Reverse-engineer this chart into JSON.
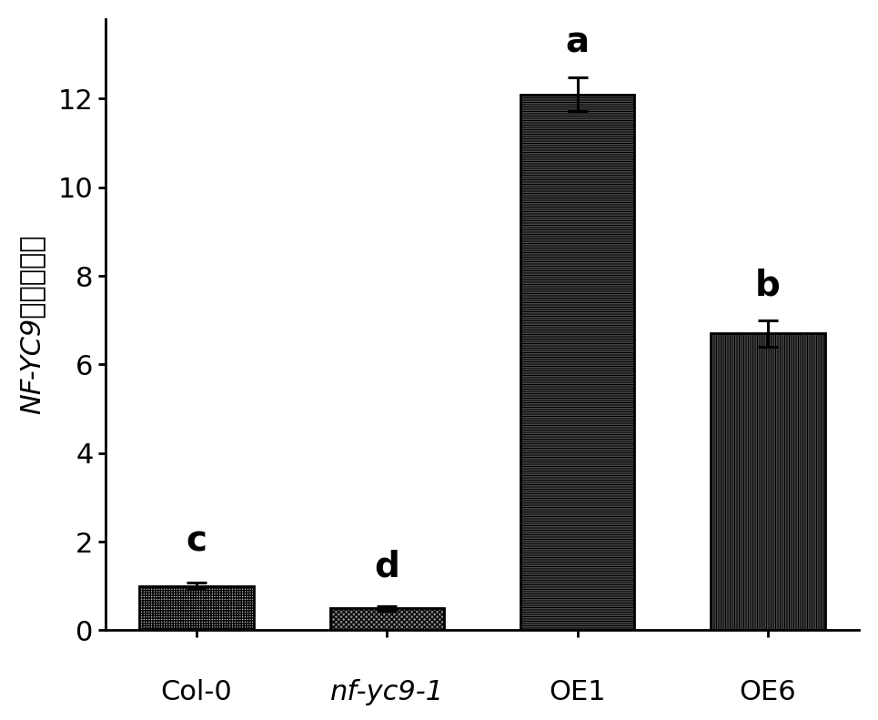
{
  "categories": [
    "Col-0",
    "nf-yc9-1",
    "OE1",
    "OE6"
  ],
  "values": [
    1.0,
    0.5,
    12.1,
    6.7
  ],
  "errors": [
    0.07,
    0.05,
    0.38,
    0.3
  ],
  "anno_labels": [
    "c",
    "d",
    "a",
    "b"
  ],
  "ylabel": "NF-YC9相对表达量",
  "ylim": [
    0,
    13.8
  ],
  "yticks": [
    0,
    2,
    4,
    6,
    8,
    10,
    12
  ],
  "bar_width": 0.6,
  "background_color": "#ffffff",
  "hatch_patterns": [
    "++++++",
    "xxxxxx",
    "----------",
    "||||||||||"
  ],
  "bar_face_colors": [
    "#c8c8c8",
    "#888888",
    "#ffffff",
    "#ffffff"
  ],
  "tick_fontsize": 22,
  "ylabel_fontsize": 22,
  "xlabel_fontsize": 22,
  "annotation_fontsize": 28,
  "bar_linewidth": 2.0,
  "spine_linewidth": 2.0
}
